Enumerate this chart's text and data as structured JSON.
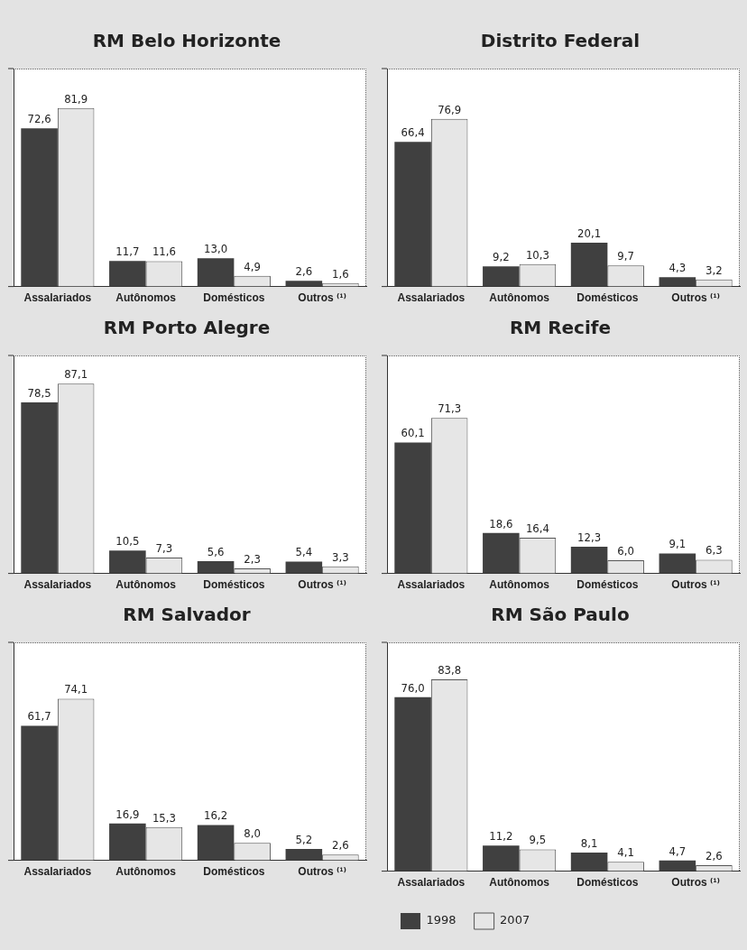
{
  "chart_data": [
    {
      "type": "bar",
      "title": "RM Belo Horizonte",
      "categories": [
        "Assalariados",
        "Autônomos",
        "Domésticos",
        "Outros ⁽¹⁾"
      ],
      "series": [
        {
          "color": "#404040",
          "values": [
            72.6,
            11.7,
            13.0,
            2.6
          ],
          "value_labels": [
            "72,6",
            "11,7",
            "13,0",
            "2,6"
          ]
        },
        {
          "color": "#e6e6e6",
          "values": [
            81.9,
            11.6,
            4.9,
            1.6
          ],
          "value_labels": [
            "81,9",
            "11,6",
            "4,9",
            "1,6"
          ]
        }
      ],
      "ylim": [
        0,
        100
      ],
      "tick_labels": "x",
      "grid": false,
      "legend": false
    },
    {
      "type": "bar",
      "title": "Distrito Federal",
      "categories": [
        "Assalariados",
        "Autônomos",
        "Domésticos",
        "Outros ⁽¹⁾"
      ],
      "series": [
        {
          "color": "#404040",
          "values": [
            66.4,
            9.2,
            20.1,
            4.3
          ],
          "value_labels": [
            "66,4",
            "9,2",
            "20,1",
            "4,3"
          ]
        },
        {
          "color": "#e6e6e6",
          "values": [
            76.9,
            10.3,
            9.7,
            3.2
          ],
          "value_labels": [
            "76,9",
            "10,3",
            "9,7",
            "3,2"
          ]
        }
      ],
      "ylim": [
        0,
        100
      ],
      "tick_labels": "x",
      "grid": false,
      "legend": false
    },
    {
      "type": "bar",
      "title": "RM Porto Alegre",
      "categories": [
        "Assalariados",
        "Autônomos",
        "Domésticos",
        "Outros ⁽¹⁾"
      ],
      "series": [
        {
          "color": "#404040",
          "values": [
            78.5,
            10.5,
            5.6,
            5.4
          ],
          "value_labels": [
            "78,5",
            "10,5",
            "5,6",
            "5,4"
          ]
        },
        {
          "color": "#e6e6e6",
          "values": [
            87.1,
            7.3,
            2.3,
            3.3
          ],
          "value_labels": [
            "87,1",
            "7,3",
            "2,3",
            "3,3"
          ]
        }
      ],
      "ylim": [
        0,
        100
      ],
      "tick_labels": "x",
      "grid": false,
      "legend": false
    },
    {
      "type": "bar",
      "title": "RM Recife",
      "categories": [
        "Assalariados",
        "Autônomos",
        "Domésticos",
        "Outros ⁽¹⁾"
      ],
      "series": [
        {
          "color": "#404040",
          "values": [
            60.1,
            18.6,
            12.3,
            9.1
          ],
          "value_labels": [
            "60,1",
            "18,6",
            "12,3",
            "9,1"
          ]
        },
        {
          "color": "#e6e6e6",
          "values": [
            71.3,
            16.4,
            6.0,
            6.3
          ],
          "value_labels": [
            "71,3",
            "16,4",
            "6,0",
            "6,3"
          ]
        }
      ],
      "ylim": [
        0,
        100
      ],
      "tick_labels": "x",
      "grid": false,
      "legend": false
    },
    {
      "type": "bar",
      "title": "RM Salvador",
      "categories": [
        "Assalariados",
        "Autônomos",
        "Domésticos",
        "Outros ⁽¹⁾"
      ],
      "series": [
        {
          "color": "#404040",
          "values": [
            61.7,
            16.9,
            16.2,
            5.2
          ],
          "value_labels": [
            "61,7",
            "16,9",
            "16,2",
            "5,2"
          ]
        },
        {
          "color": "#e6e6e6",
          "values": [
            74.1,
            15.3,
            8.0,
            2.6
          ],
          "value_labels": [
            "74,1",
            "15,3",
            "8,0",
            "2,6"
          ]
        }
      ],
      "ylim": [
        0,
        100
      ],
      "tick_labels": "x",
      "grid": false,
      "legend": false
    },
    {
      "type": "bar",
      "title": "RM São Paulo",
      "categories": [
        "Assalariados",
        "Autônomos",
        "Domésticos",
        "Outros ⁽¹⁾"
      ],
      "series": [
        {
          "name": "1998",
          "color": "#404040",
          "values": [
            76.0,
            11.2,
            8.1,
            4.7
          ],
          "value_labels": [
            "76,0",
            "11,2",
            "8,1",
            "4,7"
          ]
        },
        {
          "name": "2007",
          "color": "#e6e6e6",
          "values": [
            83.8,
            9.5,
            4.1,
            2.6
          ],
          "value_labels": [
            "83,8",
            "9,5",
            "4,1",
            "2,6"
          ]
        }
      ],
      "ylim": [
        0,
        100
      ],
      "tick_labels": "x",
      "grid": false,
      "legend": "bottom"
    }
  ]
}
